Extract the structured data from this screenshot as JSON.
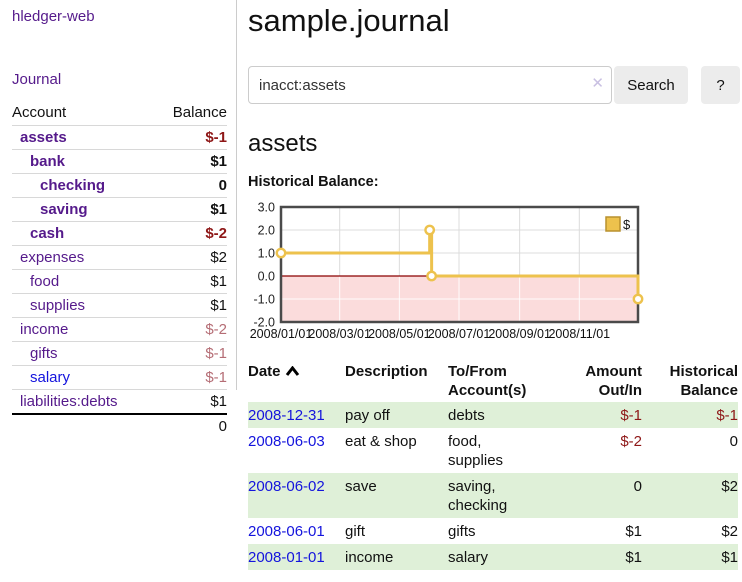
{
  "app": {
    "title": "hledger-web"
  },
  "sidebar": {
    "nav_journal": "Journal",
    "accounts_table": {
      "header_account": "Account",
      "header_balance": "Balance",
      "rows": [
        {
          "label": "assets",
          "indent": 1,
          "bold": true,
          "link": "purple",
          "balance": "$-1",
          "balance_class": "neg-strong"
        },
        {
          "label": "bank",
          "indent": 2,
          "bold": true,
          "link": "purple",
          "balance": "$1",
          "balance_class": "pos"
        },
        {
          "label": "checking",
          "indent": 3,
          "bold": true,
          "link": "purple",
          "balance": "0",
          "balance_class": "pos"
        },
        {
          "label": "saving",
          "indent": 3,
          "bold": true,
          "link": "purple",
          "balance": "$1",
          "balance_class": "pos"
        },
        {
          "label": "cash",
          "indent": 2,
          "bold": true,
          "link": "purple",
          "balance": "$-2",
          "balance_class": "neg-strong"
        },
        {
          "label": "expenses",
          "indent": 1,
          "bold": false,
          "link": "purple",
          "balance": "$2",
          "balance_class": "pos"
        },
        {
          "label": "food",
          "indent": 2,
          "bold": false,
          "link": "purple",
          "balance": "$1",
          "balance_class": "pos"
        },
        {
          "label": "supplies",
          "indent": 2,
          "bold": false,
          "link": "purple",
          "balance": "$1",
          "balance_class": "pos"
        },
        {
          "label": "income",
          "indent": 1,
          "bold": false,
          "link": "purple",
          "balance": "$-2",
          "balance_class": "neg-muted"
        },
        {
          "label": "gifts",
          "indent": 2,
          "bold": false,
          "link": "purple",
          "balance": "$-1",
          "balance_class": "neg-muted"
        },
        {
          "label": "salary",
          "indent": 2,
          "bold": false,
          "link": "blue",
          "balance": "$-1",
          "balance_class": "neg-muted"
        },
        {
          "label": "liabilities:debts",
          "indent": 1,
          "bold": false,
          "link": "purple",
          "balance": "$1",
          "balance_class": "pos"
        }
      ],
      "total": "0"
    }
  },
  "main": {
    "title": "sample.journal",
    "search": {
      "value": "inacct:assets",
      "clear_icon": "✕",
      "search_button": "Search",
      "help_button": "?"
    },
    "section_heading": "assets",
    "chart_label": "Historical Balance:"
  },
  "chart_data": {
    "type": "line",
    "step": true,
    "title": "Historical Balance",
    "series": [
      {
        "name": "$",
        "color": "#edc24d",
        "points": [
          {
            "date": "2008-01-01",
            "value": 1
          },
          {
            "date": "2008-06-01",
            "value": 2
          },
          {
            "date": "2008-06-03",
            "value": 0
          },
          {
            "date": "2008-12-31",
            "value": -1
          }
        ]
      }
    ],
    "xrange": [
      "2008-01-01",
      "2008-12-31"
    ],
    "ylim": [
      -2,
      3
    ],
    "yticks": [
      3.0,
      2.0,
      1.0,
      0.0,
      -1.0,
      -2.0
    ],
    "ytick_labels": [
      "3.0",
      "2.0",
      "1.0",
      "0.0",
      "-1.0",
      "-2.0"
    ],
    "xtick_labels": [
      "2008/01/01",
      "2008/03/01",
      "2008/05/01",
      "2008/07/01",
      "2008/09/01",
      "2008/11/01"
    ],
    "grid": true,
    "legend": {
      "label": "$",
      "position": "top-right"
    },
    "negative_region_fill": "#fbdcdc",
    "zero_line_color": "#8b0000"
  },
  "transactions": {
    "headers": {
      "date": "Date",
      "description": "Description",
      "tofrom_line1": "To/From",
      "tofrom_line2": "Account(s)",
      "amount_line1": "Amount",
      "amount_line2": "Out/In",
      "balance_line1": "Historical",
      "balance_line2": "Balance"
    },
    "rows": [
      {
        "date": "2008-12-31",
        "description": "pay off",
        "accounts": "debts",
        "amount": "$-1",
        "amount_class": "neg-strong",
        "balance": "$-1",
        "balance_class": "neg-strong",
        "striped": true
      },
      {
        "date": "2008-06-03",
        "description": "eat & shop",
        "accounts": "food, supplies",
        "amount": "$-2",
        "amount_class": "neg-strong",
        "balance": "0",
        "balance_class": "pos",
        "striped": false
      },
      {
        "date": "2008-06-02",
        "description": "save",
        "accounts": "saving, checking",
        "amount": "0",
        "amount_class": "pos",
        "balance": "$2",
        "balance_class": "pos",
        "striped": true
      },
      {
        "date": "2008-06-01",
        "description": "gift",
        "accounts": "gifts",
        "amount": "$1",
        "amount_class": "pos",
        "balance": "$2",
        "balance_class": "pos",
        "striped": false
      },
      {
        "date": "2008-01-01",
        "description": "income",
        "accounts": "salary",
        "amount": "$1",
        "amount_class": "pos",
        "balance": "$1",
        "balance_class": "pos",
        "striped": true
      }
    ]
  },
  "colors": {
    "link_purple": "#551a8b",
    "link_blue": "#1414dd",
    "negative_strong": "#8e1717",
    "negative_muted": "#b56d75",
    "stripe_green": "#dff0d8",
    "button_bg": "#ececec",
    "chart_line": "#edc24d",
    "chart_negative_fill": "#fbdcdc",
    "chart_zero_line": "#8b0000",
    "chart_grid": "#dcdcdc",
    "chart_border": "#4a4a4a"
  }
}
